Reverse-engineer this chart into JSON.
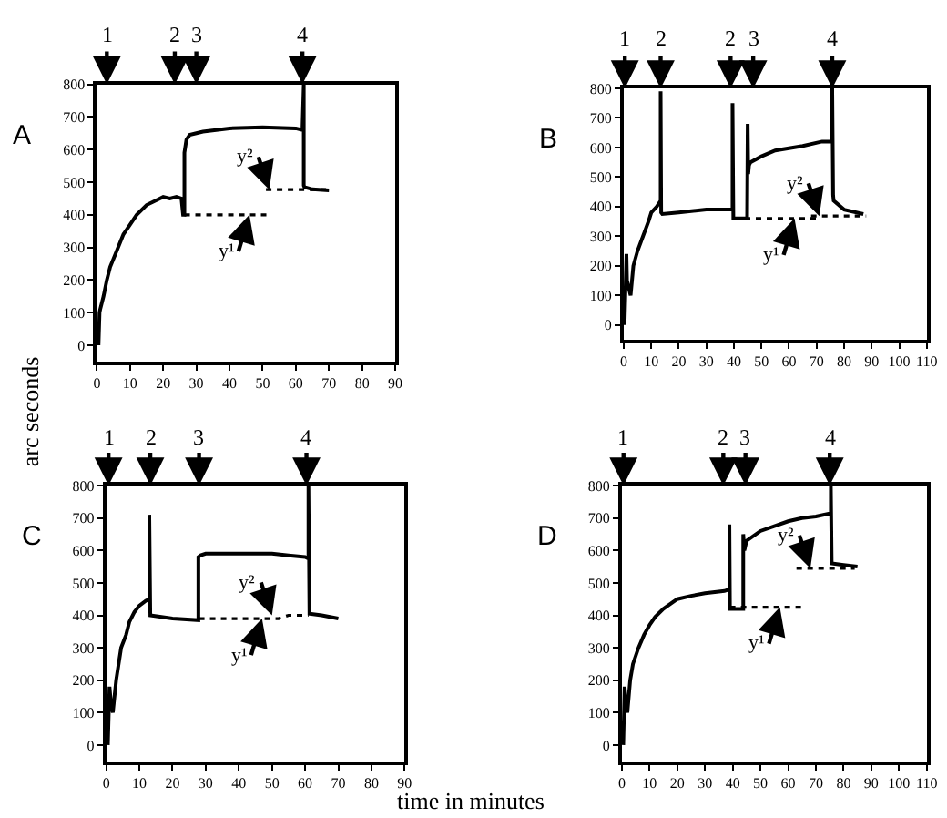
{
  "chart_data": [
    {
      "type": "line",
      "title": "A",
      "ylabel": "arc seconds",
      "xlim": [
        0,
        90
      ],
      "xticks": [
        0,
        10,
        20,
        30,
        40,
        50,
        60,
        70,
        80,
        90
      ],
      "ylim": [
        -50,
        800
      ],
      "yticks": [
        0,
        100,
        200,
        300,
        400,
        500,
        600,
        700,
        800
      ],
      "grid": false,
      "marker": "none",
      "series": [
        {
          "color": "#000000",
          "line_style": "solid",
          "x": [
            0.5,
            0.8,
            1,
            2,
            3,
            4,
            6,
            8,
            10,
            12,
            15,
            18,
            20,
            22,
            24,
            25.5,
            26,
            26.4,
            26.4,
            27,
            28,
            30,
            32,
            40,
            50,
            60,
            62,
            62.4,
            62.4,
            62.6,
            65,
            70
          ],
          "values": [
            0,
            100,
            110,
            150,
            200,
            240,
            290,
            340,
            370,
            400,
            430,
            445,
            455,
            450,
            455,
            450,
            400,
            400,
            590,
            630,
            645,
            650,
            655,
            665,
            668,
            665,
            660,
            800,
            490,
            485,
            478,
            475
          ]
        },
        {
          "color": "#000000",
          "line_style": "dotted",
          "x": [
            26.4,
            52
          ],
          "values": [
            400,
            400
          ]
        },
        {
          "color": "#000000",
          "line_style": "dotted",
          "x": [
            51,
            70
          ],
          "values": [
            477,
            477
          ]
        }
      ],
      "annotations": [
        {
          "text": "1",
          "x": 3
        },
        {
          "text": "2",
          "x": 23.5
        },
        {
          "text": "3",
          "x": 30
        },
        {
          "text": "4",
          "x": 62
        },
        {
          "text": "y¹",
          "x": 46,
          "y": 400
        },
        {
          "text": "y²",
          "x": 52,
          "y": 477
        }
      ]
    },
    {
      "type": "line",
      "title": "B",
      "xlim": [
        0,
        110
      ],
      "xticks": [
        0,
        10,
        20,
        30,
        40,
        50,
        60,
        70,
        80,
        90,
        100,
        110
      ],
      "ylim": [
        -50,
        800
      ],
      "yticks": [
        0,
        100,
        200,
        300,
        400,
        500,
        600,
        700,
        800
      ],
      "grid": false,
      "marker": "none",
      "series": [
        {
          "color": "#000000",
          "line_style": "solid",
          "x": [
            0.3,
            1,
            1.2,
            2.5,
            3.5,
            5,
            7,
            9,
            10,
            12,
            13.4,
            13.4,
            13.6,
            14,
            20,
            30,
            39.5,
            39.5,
            39.8,
            40,
            44.8,
            45,
            45.2,
            45.5,
            46,
            50,
            55,
            65,
            72,
            75.7,
            75.7,
            76,
            76.2,
            80,
            87
          ],
          "values": [
            0,
            240,
            150,
            100,
            200,
            250,
            300,
            350,
            380,
            400,
            420,
            790,
            380,
            375,
            380,
            390,
            390,
            750,
            360,
            360,
            360,
            680,
            510,
            540,
            550,
            570,
            590,
            605,
            620,
            620,
            800,
            440,
            420,
            390,
            375
          ]
        },
        {
          "color": "#000000",
          "line_style": "dotted",
          "x": [
            40,
            70
          ],
          "values": [
            360,
            360
          ]
        },
        {
          "color": "#000000",
          "line_style": "dotted",
          "x": [
            68,
            88
          ],
          "values": [
            368,
            368
          ]
        }
      ],
      "annotations": [
        {
          "text": "1",
          "x": 0.4
        },
        {
          "text": "2",
          "x": 13.4
        },
        {
          "text": "2",
          "x": 38.8
        },
        {
          "text": "3",
          "x": 47
        },
        {
          "text": "4",
          "x": 75.7
        },
        {
          "text": "y¹",
          "x": 62,
          "y": 360
        },
        {
          "text": "y²",
          "x": 71,
          "y": 368
        }
      ]
    },
    {
      "type": "line",
      "title": "C",
      "xlabel": "time in minutes",
      "xlim": [
        0,
        90
      ],
      "xticks": [
        0,
        10,
        20,
        30,
        40,
        50,
        60,
        70,
        80,
        90
      ],
      "ylim": [
        -50,
        800
      ],
      "yticks": [
        0,
        100,
        200,
        300,
        400,
        500,
        600,
        700,
        800
      ],
      "grid": false,
      "marker": "none",
      "series": [
        {
          "color": "#000000",
          "line_style": "solid",
          "x": [
            0.5,
            1,
            1.5,
            2,
            3,
            4.5,
            6,
            7,
            8.5,
            10,
            12,
            13,
            13,
            13.3,
            20,
            27.8,
            27.8,
            28.5,
            30,
            40,
            50,
            55,
            60,
            61,
            61,
            61.3,
            65,
            70
          ],
          "values": [
            0,
            180,
            120,
            100,
            200,
            300,
            340,
            380,
            410,
            430,
            445,
            450,
            710,
            400,
            390,
            385,
            580,
            585,
            590,
            590,
            590,
            585,
            580,
            575,
            800,
            405,
            400,
            390
          ]
        },
        {
          "color": "#000000",
          "line_style": "dotted",
          "x": [
            28,
            52,
            55,
            61
          ],
          "values": [
            390,
            390,
            400,
            400
          ]
        }
      ],
      "annotations": [
        {
          "text": "1",
          "x": 0.7
        },
        {
          "text": "2",
          "x": 13.3
        },
        {
          "text": "3",
          "x": 28
        },
        {
          "text": "4",
          "x": 60.4
        },
        {
          "text": "y¹",
          "x": 47,
          "y": 390
        },
        {
          "text": "y²",
          "x": 50,
          "y": 400
        }
      ]
    },
    {
      "type": "line",
      "title": "D",
      "xlim": [
        0,
        110
      ],
      "xticks": [
        0,
        10,
        20,
        30,
        40,
        50,
        60,
        70,
        80,
        90,
        100,
        110
      ],
      "ylim": [
        -50,
        800
      ],
      "yticks": [
        0,
        100,
        200,
        300,
        400,
        500,
        600,
        700,
        800
      ],
      "grid": false,
      "marker": "none",
      "series": [
        {
          "color": "#000000",
          "line_style": "solid",
          "x": [
            0.5,
            1,
            1.5,
            2,
            3,
            4,
            6,
            8,
            10,
            12,
            15,
            20,
            25,
            30,
            37,
            38.8,
            38.8,
            39,
            43.8,
            43.8,
            44.2,
            45,
            50,
            55,
            60,
            65,
            70,
            75.4,
            75.4,
            75.7,
            80,
            85
          ],
          "values": [
            0,
            180,
            120,
            100,
            200,
            250,
            300,
            340,
            370,
            395,
            420,
            450,
            460,
            468,
            475,
            480,
            680,
            420,
            420,
            650,
            600,
            630,
            660,
            675,
            690,
            700,
            705,
            715,
            800,
            560,
            555,
            550
          ]
        },
        {
          "color": "#000000",
          "line_style": "dotted",
          "x": [
            39,
            64.7
          ],
          "values": [
            425,
            425
          ]
        },
        {
          "color": "#000000",
          "line_style": "dotted",
          "x": [
            63,
            84
          ],
          "values": [
            545,
            545
          ]
        }
      ],
      "annotations": [
        {
          "text": "1",
          "x": 0.6
        },
        {
          "text": "2",
          "x": 36.6
        },
        {
          "text": "3",
          "x": 44.6
        },
        {
          "text": "4",
          "x": 75
        },
        {
          "text": "y¹",
          "x": 57,
          "y": 425
        },
        {
          "text": "y²",
          "x": 68,
          "y": 545
        }
      ]
    }
  ]
}
